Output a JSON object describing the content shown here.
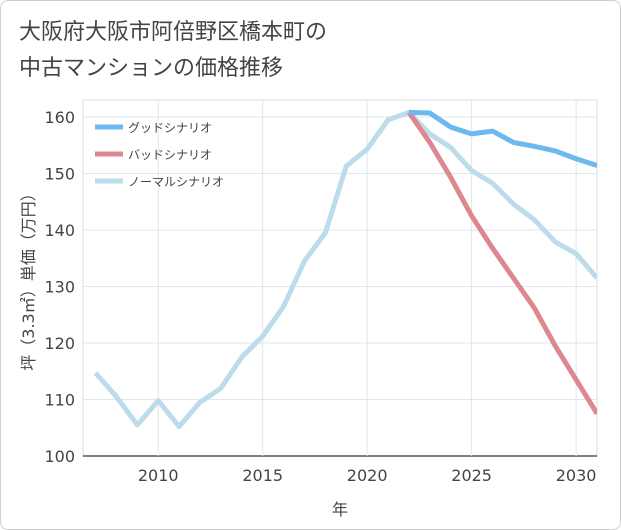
{
  "chart_data": {
    "type": "line",
    "title_lines": [
      "大阪府大阪市阿倍野区橋本町の",
      "中古マンションの価格推移"
    ],
    "xlabel": "年",
    "ylabel": "坪（3.3㎡）単価（万円）",
    "xlim": [
      2006.4,
      2031
    ],
    "ylim": [
      100,
      163
    ],
    "xticks": [
      2010,
      2015,
      2020,
      2025,
      2030
    ],
    "yticks": [
      100,
      110,
      120,
      130,
      140,
      150,
      160
    ],
    "grid": true,
    "legend_position": "top-left",
    "series": [
      {
        "name": "グッドシナリオ",
        "color": "#6cb8ef",
        "x": [
          2022,
          2023,
          2024,
          2025,
          2026,
          2027,
          2028,
          2029,
          2030,
          2031
        ],
        "y": [
          160.8,
          160.7,
          158.2,
          157.0,
          157.5,
          155.5,
          154.8,
          154.0,
          152.6,
          151.4
        ]
      },
      {
        "name": "バッドシナリオ",
        "color": "#dd8890",
        "x": [
          2022,
          2023,
          2024,
          2025,
          2026,
          2027,
          2028,
          2029,
          2030,
          2031
        ],
        "y": [
          160.8,
          155.5,
          149.3,
          142.5,
          136.8,
          131.5,
          126.2,
          119.5,
          113.5,
          107.5
        ]
      },
      {
        "name": "ノーマルシナリオ",
        "color": "#bcdcec",
        "x": [
          2007,
          2008,
          2009,
          2010,
          2011,
          2012,
          2013,
          2014,
          2015,
          2016,
          2017,
          2018,
          2019,
          2020,
          2021,
          2022,
          2023,
          2024,
          2025,
          2026,
          2027,
          2028,
          2029,
          2030,
          2031
        ],
        "y": [
          114.7,
          110.5,
          105.5,
          109.8,
          105.2,
          109.5,
          112.0,
          117.5,
          121.2,
          126.5,
          134.5,
          139.5,
          151.3,
          154.3,
          159.5,
          160.8,
          157.0,
          154.6,
          150.5,
          148.3,
          144.6,
          141.8,
          137.9,
          135.8,
          131.5
        ]
      }
    ]
  }
}
